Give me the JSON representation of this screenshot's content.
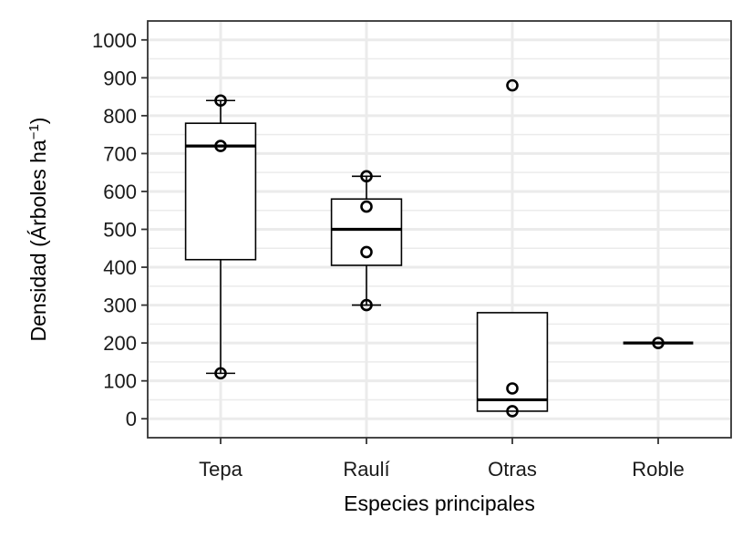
{
  "chart_data": {
    "type": "box",
    "xlabel": "Especies principales",
    "ylabel_main": "Densidad (Árboles ha",
    "ylabel_sup": "−1",
    "ylabel_close": ")",
    "ylim": [
      -50,
      1050
    ],
    "yticks": [
      0,
      100,
      200,
      300,
      400,
      500,
      600,
      700,
      800,
      900,
      1000
    ],
    "ytick_labels": [
      "0",
      "100",
      "200",
      "300",
      "400",
      "500",
      "600",
      "700",
      "800",
      "900",
      "1000"
    ],
    "categories": [
      "Tepa",
      "Raulí",
      "Otras",
      "Roble"
    ],
    "boxes": [
      {
        "category": "Tepa",
        "whisker_low": 120,
        "q1": 420,
        "median": 720,
        "q3": 780,
        "whisker_high": 840,
        "points": [
          840,
          720,
          120
        ]
      },
      {
        "category": "Raulí",
        "whisker_low": 300,
        "q1": 405,
        "median": 500,
        "q3": 580,
        "whisker_high": 640,
        "points": [
          640,
          560,
          440,
          300
        ]
      },
      {
        "category": "Otras",
        "whisker_low": 20,
        "q1": 20,
        "median": 50,
        "q3": 280,
        "whisker_high": 280,
        "points": [
          880,
          80,
          20
        ]
      },
      {
        "category": "Roble",
        "whisker_low": 200,
        "q1": 200,
        "median": 200,
        "q3": 200,
        "whisker_high": 200,
        "points": [
          200
        ]
      }
    ],
    "grid": true,
    "legend": "none"
  }
}
